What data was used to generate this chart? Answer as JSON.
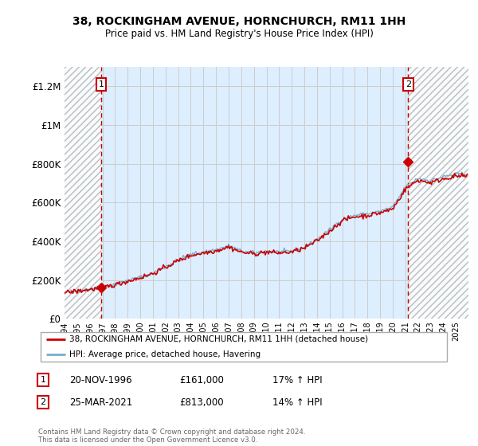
{
  "title": "38, ROCKINGHAM AVENUE, HORNCHURCH, RM11 1HH",
  "subtitle": "Price paid vs. HM Land Registry's House Price Index (HPI)",
  "ylim": [
    0,
    1300000
  ],
  "yticks": [
    0,
    200000,
    400000,
    600000,
    800000,
    1000000,
    1200000
  ],
  "ytick_labels": [
    "£0",
    "£200K",
    "£400K",
    "£600K",
    "£800K",
    "£1M",
    "£1.2M"
  ],
  "x_start_year": 1994,
  "x_end_year": 2026,
  "sale1_year": 1996.9,
  "sale1_price": 161000,
  "sale2_year": 2021.23,
  "sale2_price": 813000,
  "legend_line1": "38, ROCKINGHAM AVENUE, HORNCHURCH, RM11 1HH (detached house)",
  "legend_line2": "HPI: Average price, detached house, Havering",
  "annotation1_label": "1",
  "annotation1_date": "20-NOV-1996",
  "annotation1_price": "£161,000",
  "annotation1_hpi": "17% ↑ HPI",
  "annotation2_label": "2",
  "annotation2_date": "25-MAR-2021",
  "annotation2_price": "£813,000",
  "annotation2_hpi": "14% ↑ HPI",
  "footer": "Contains HM Land Registry data © Crown copyright and database right 2024.\nThis data is licensed under the Open Government Licence v3.0.",
  "line_color_sale": "#cc0000",
  "line_color_hpi": "#7aadcc",
  "grid_color": "#cccccc",
  "bg_plot": "#ddeeff",
  "dashed_line_color": "#cc0000",
  "hpi_base_1994": 137000,
  "sale_base_1994": 161000,
  "hpi_scale_factor": 1.17
}
